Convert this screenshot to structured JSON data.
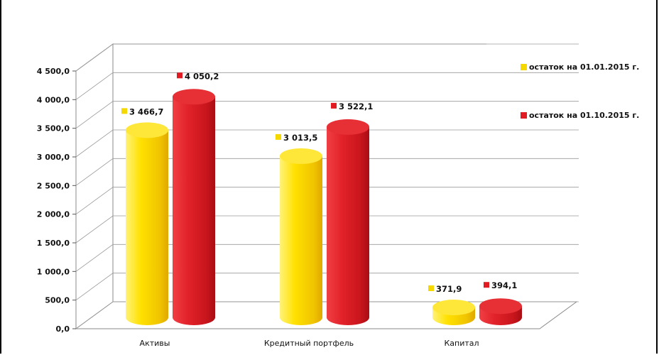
{
  "chart_data": {
    "type": "bar",
    "categories": [
      "Активы",
      "Кредитный портфель",
      "Капитал"
    ],
    "series": [
      {
        "name": "остаток на  01.01.2015 г.",
        "values": [
          3466.7,
          3013.5,
          371.9
        ],
        "labels": [
          "3 466,7",
          "3 013,5",
          "371,9"
        ],
        "color": "#f5d800"
      },
      {
        "name": "остаток на  01.10.2015 г.",
        "values": [
          4050.2,
          3522.1,
          394.1
        ],
        "labels": [
          "4 050,2",
          "3 522,1",
          "394,1"
        ],
        "color": "#e01b22"
      }
    ],
    "ylim": [
      0,
      4500
    ],
    "yticks": [
      0,
      500,
      1000,
      1500,
      2000,
      2500,
      3000,
      3500,
      4000,
      4500
    ],
    "ytick_labels": [
      "0,0",
      "500,0",
      "1 000,0",
      "1 500,0",
      "2 000,0",
      "2 500,0",
      "3 000,0",
      "3 500,0",
      "4 000,0",
      "4 500,0"
    ],
    "grid": true,
    "legend_position": "top-right",
    "style": "3d-cylinder"
  }
}
